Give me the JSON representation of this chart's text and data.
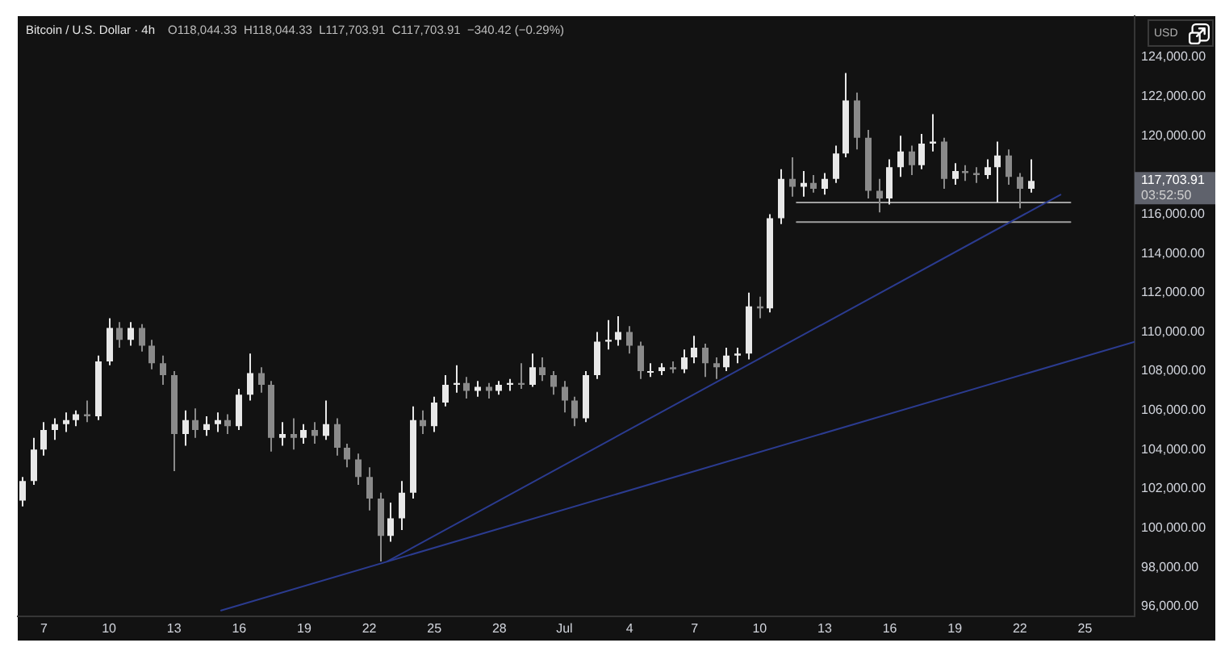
{
  "chart_data": {
    "type": "candlestick",
    "title": "Bitcoin / U.S. Dollar · 4h",
    "subtitle": "O118,044.33  H118,044.33  L117,703.91  C117,703.91  −340.42 (−0.29%)",
    "ylabel": "USD",
    "annotations": [
      "117,703.91",
      "03:52:50"
    ],
    "x": [
      "--06-06T00:00",
      "--06-06T12:00",
      "--06-07T00:00",
      "--06-07T12:00",
      "--06-08T00:00",
      "--06-08T12:00",
      "--06-09T00:00",
      "--06-09T12:00",
      "--06-10T00:00",
      "--06-10T12:00",
      "--06-11T00:00",
      "--06-11T12:00",
      "--06-12T00:00",
      "--06-12T12:00",
      "--06-13T00:00",
      "--06-13T12:00",
      "--06-14T00:00",
      "--06-14T12:00",
      "--06-15T00:00",
      "--06-15T12:00",
      "--06-16T00:00",
      "--06-16T12:00",
      "--06-17T00:00",
      "--06-17T12:00",
      "--06-18T00:00",
      "--06-18T12:00",
      "--06-19T00:00",
      "--06-19T12:00",
      "--06-20T00:00",
      "--06-20T12:00",
      "--06-21T00:00",
      "--06-21T12:00",
      "--06-22T00:00",
      "--06-22T12:00",
      "--06-23T00:00",
      "--06-23T12:00",
      "--06-24T00:00",
      "--06-24T12:00",
      "--06-25T00:00",
      "--06-25T12:00",
      "--06-26T00:00",
      "--06-26T12:00",
      "--06-27T00:00",
      "--06-27T12:00",
      "--06-28T00:00",
      "--06-28T12:00",
      "--06-29T00:00",
      "--06-29T12:00",
      "--06-30T00:00",
      "--06-30T12:00",
      "--07-01T00:00",
      "--07-01T12:00",
      "--07-02T00:00",
      "--07-02T12:00",
      "--07-03T00:00",
      "--07-03T12:00",
      "--07-04T00:00",
      "--07-04T12:00",
      "--07-05T00:00",
      "--07-05T12:00",
      "--07-06T00:00",
      "--07-06T12:00",
      "--07-07T00:00",
      "--07-07T12:00",
      "--07-08T00:00",
      "--07-08T12:00",
      "--07-09T00:00",
      "--07-09T12:00",
      "--07-10T00:00",
      "--07-10T12:00",
      "--07-11T00:00",
      "--07-11T12:00",
      "--07-12T00:00",
      "--07-12T12:00",
      "--07-13T00:00",
      "--07-13T12:00",
      "--07-14T00:00",
      "--07-14T12:00",
      "--07-15T00:00",
      "--07-15T12:00",
      "--07-16T00:00",
      "--07-16T12:00",
      "--07-17T00:00",
      "--07-17T12:00",
      "--07-18T00:00",
      "--07-18T12:00",
      "--07-19T00:00",
      "--07-19T12:00",
      "--07-20T00:00",
      "--07-20T12:00",
      "--07-21T00:00",
      "--07-21T12:00",
      "--07-22T00:00",
      "--07-22T12:00"
    ],
    "ohlc": [
      [
        101400,
        102600,
        101100,
        102400
      ],
      [
        102400,
        104600,
        102200,
        104000
      ],
      [
        104000,
        105400,
        103700,
        105000
      ],
      [
        105000,
        105600,
        104500,
        105300
      ],
      [
        105300,
        105900,
        104900,
        105500
      ],
      [
        105500,
        106000,
        105200,
        105800
      ],
      [
        105800,
        106500,
        105400,
        105700
      ],
      [
        105700,
        108800,
        105500,
        108500
      ],
      [
        108500,
        110700,
        108300,
        110200
      ],
      [
        110200,
        110500,
        109200,
        109600
      ],
      [
        109600,
        110500,
        109300,
        110200
      ],
      [
        110200,
        110400,
        109000,
        109300
      ],
      [
        109300,
        109600,
        108100,
        108400
      ],
      [
        108400,
        108800,
        107300,
        107800
      ],
      [
        107800,
        108000,
        102900,
        104800
      ],
      [
        104800,
        106000,
        104200,
        105500
      ],
      [
        105500,
        106100,
        104600,
        105000
      ],
      [
        105000,
        105700,
        104700,
        105300
      ],
      [
        105300,
        105900,
        104900,
        105500
      ],
      [
        105500,
        105800,
        104800,
        105200
      ],
      [
        105200,
        107100,
        105000,
        106800
      ],
      [
        106800,
        108900,
        106500,
        107900
      ],
      [
        107900,
        108200,
        106900,
        107300
      ],
      [
        107300,
        107500,
        103900,
        104600
      ],
      [
        104600,
        105400,
        104200,
        104800
      ],
      [
        104800,
        105600,
        104000,
        104600
      ],
      [
        104600,
        105300,
        104300,
        105000
      ],
      [
        105000,
        105400,
        104300,
        104700
      ],
      [
        104700,
        106500,
        104500,
        105300
      ],
      [
        105300,
        105600,
        103700,
        104100
      ],
      [
        104100,
        104300,
        103100,
        103500
      ],
      [
        103500,
        103800,
        102200,
        102600
      ],
      [
        102600,
        103100,
        100900,
        101500
      ],
      [
        101500,
        101800,
        98300,
        99600
      ],
      [
        99600,
        101300,
        99300,
        100500
      ],
      [
        100500,
        102400,
        99900,
        101800
      ],
      [
        101800,
        106200,
        101500,
        105500
      ],
      [
        105500,
        106000,
        104800,
        105200
      ],
      [
        105200,
        106700,
        104900,
        106400
      ],
      [
        106400,
        107800,
        106200,
        107300
      ],
      [
        107300,
        108300,
        106900,
        107400
      ],
      [
        107400,
        107700,
        106600,
        107000
      ],
      [
        107000,
        107500,
        106700,
        107200
      ],
      [
        107200,
        107400,
        106600,
        107000
      ],
      [
        107000,
        107500,
        106800,
        107300
      ],
      [
        107300,
        107600,
        107000,
        107400
      ],
      [
        107400,
        108400,
        107100,
        107300
      ],
      [
        107300,
        108900,
        107200,
        108200
      ],
      [
        108200,
        108700,
        107500,
        107800
      ],
      [
        107800,
        108000,
        106800,
        107200
      ],
      [
        107200,
        107500,
        105900,
        106500
      ],
      [
        106500,
        106700,
        105200,
        105600
      ],
      [
        105600,
        108000,
        105400,
        107800
      ],
      [
        107800,
        110000,
        107600,
        109500
      ],
      [
        109500,
        110600,
        109100,
        109600
      ],
      [
        109600,
        110800,
        109300,
        110000
      ],
      [
        110000,
        110300,
        108900,
        109300
      ],
      [
        109300,
        109500,
        107600,
        108000
      ],
      [
        108000,
        108400,
        107700,
        108000
      ],
      [
        108000,
        108400,
        107800,
        108200
      ],
      [
        108200,
        108500,
        107900,
        108100
      ],
      [
        108100,
        109100,
        107900,
        108700
      ],
      [
        108700,
        109800,
        108400,
        109200
      ],
      [
        109200,
        109400,
        107700,
        108400
      ],
      [
        108400,
        108700,
        107600,
        108200
      ],
      [
        108200,
        109200,
        108000,
        108800
      ],
      [
        108800,
        109200,
        108400,
        108900
      ],
      [
        108900,
        112000,
        108600,
        111300
      ],
      [
        111300,
        111800,
        110700,
        111200
      ],
      [
        111200,
        116000,
        111000,
        115800
      ],
      [
        115800,
        118300,
        115500,
        117800
      ],
      [
        117800,
        118900,
        116900,
        117400
      ],
      [
        117400,
        118200,
        116900,
        117600
      ],
      [
        117600,
        118000,
        117100,
        117300
      ],
      [
        117300,
        118100,
        117000,
        117800
      ],
      [
        117800,
        119500,
        117600,
        119100
      ],
      [
        119100,
        123200,
        118900,
        121800
      ],
      [
        121800,
        122200,
        119300,
        119900
      ],
      [
        119900,
        120300,
        116800,
        117200
      ],
      [
        117200,
        117800,
        116100,
        116800
      ],
      [
        116800,
        118800,
        116500,
        118400
      ],
      [
        118400,
        120000,
        117900,
        119200
      ],
      [
        119200,
        119500,
        118000,
        118500
      ],
      [
        118500,
        120100,
        118300,
        119600
      ],
      [
        119600,
        121100,
        119200,
        119700
      ],
      [
        119700,
        119900,
        117300,
        117800
      ],
      [
        117800,
        118600,
        117500,
        118200
      ],
      [
        118200,
        118500,
        117700,
        118100
      ],
      [
        118100,
        118400,
        117600,
        118000
      ],
      [
        118000,
        118800,
        117800,
        118400
      ],
      [
        118400,
        119700,
        116600,
        119000
      ],
      [
        119000,
        119300,
        117500,
        117900
      ],
      [
        117900,
        118100,
        116300,
        117300
      ],
      [
        117300,
        118800,
        117100,
        117703.91
      ]
    ],
    "colors": [
      "#e8e8e8",
      "#e8e8e8",
      "#e8e8e8",
      "#e8e8e8",
      "#e8e8e8",
      "#e8e8e8",
      "#8a8a8a",
      "#e8e8e8",
      "#e8e8e8",
      "#8a8a8a",
      "#e8e8e8",
      "#8a8a8a",
      "#8a8a8a",
      "#8a8a8a",
      "#8a8a8a",
      "#e8e8e8",
      "#8a8a8a",
      "#e8e8e8",
      "#e8e8e8",
      "#8a8a8a",
      "#e8e8e8",
      "#e8e8e8",
      "#8a8a8a",
      "#8a8a8a",
      "#e8e8e8",
      "#8a8a8a",
      "#e8e8e8",
      "#8a8a8a",
      "#e8e8e8",
      "#8a8a8a",
      "#8a8a8a",
      "#8a8a8a",
      "#8a8a8a",
      "#8a8a8a",
      "#e8e8e8",
      "#e8e8e8",
      "#e8e8e8",
      "#8a8a8a",
      "#e8e8e8",
      "#e8e8e8",
      "#e8e8e8",
      "#8a8a8a",
      "#e8e8e8",
      "#8a8a8a",
      "#e8e8e8",
      "#e8e8e8",
      "#8a8a8a",
      "#e8e8e8",
      "#8a8a8a",
      "#8a8a8a",
      "#8a8a8a",
      "#8a8a8a",
      "#e8e8e8",
      "#e8e8e8",
      "#e8e8e8",
      "#e8e8e8",
      "#8a8a8a",
      "#8a8a8a",
      "#e8e8e8",
      "#e8e8e8",
      "#8a8a8a",
      "#e8e8e8",
      "#e8e8e8",
      "#8a8a8a",
      "#8a8a8a",
      "#e8e8e8",
      "#e8e8e8",
      "#e8e8e8",
      "#8a8a8a",
      "#e8e8e8",
      "#e8e8e8",
      "#8a8a8a",
      "#e8e8e8",
      "#8a8a8a",
      "#e8e8e8",
      "#e8e8e8",
      "#e8e8e8",
      "#8a8a8a",
      "#8a8a8a",
      "#8a8a8a",
      "#e8e8e8",
      "#e8e8e8",
      "#8a8a8a",
      "#e8e8e8",
      "#e8e8e8",
      "#8a8a8a",
      "#e8e8e8",
      "#8a8a8a",
      "#8a8a8a",
      "#e8e8e8",
      "#e8e8e8",
      "#8a8a8a",
      "#8a8a8a",
      "#e8e8e8"
    ],
    "series": [
      {
        "type": "line",
        "x": [
          "--06-15T04:00",
          "--07-27T07:00"
        ],
        "values": [
          95800,
          109500
        ],
        "color": "#2b3b8f"
      },
      {
        "type": "line",
        "x": [
          "--06-22T20:00",
          "--07-23T21:00"
        ],
        "values": [
          98300,
          117000
        ],
        "color": "#2b3b8f"
      },
      {
        "type": "line",
        "x": [
          "--07-11T17:00",
          "--07-24T08:00"
        ],
        "values": [
          116600,
          116600
        ],
        "color": "#a0a0a0"
      },
      {
        "type": "line",
        "x": [
          "--07-11T17:00",
          "--07-24T08:00"
        ],
        "values": [
          115600,
          115600
        ],
        "color": "#a0a0a0"
      }
    ],
    "xlim": [
      "--06-05T19:00",
      "--07-27T07:00"
    ],
    "xticks": [
      {
        "value": "--06-07",
        "label": "7"
      },
      {
        "value": "--06-10",
        "label": "10"
      },
      {
        "value": "--06-13",
        "label": "13"
      },
      {
        "value": "--06-16",
        "label": "16"
      },
      {
        "value": "--06-19",
        "label": "19"
      },
      {
        "value": "--06-22",
        "label": "22"
      },
      {
        "value": "--06-25",
        "label": "25"
      },
      {
        "value": "--06-28",
        "label": "28"
      },
      {
        "value": "--07-01",
        "label": "Jul"
      },
      {
        "value": "--07-04",
        "label": "4"
      },
      {
        "value": "--07-07",
        "label": "7"
      },
      {
        "value": "--07-10",
        "label": "10"
      },
      {
        "value": "--07-13",
        "label": "13"
      },
      {
        "value": "--07-16",
        "label": "16"
      },
      {
        "value": "--07-19",
        "label": "19"
      },
      {
        "value": "--07-22",
        "label": "22"
      },
      {
        "value": "--07-25",
        "label": "25"
      }
    ],
    "ylim": [
      95500,
      126100
    ],
    "yticks": [
      {
        "value": 96000,
        "label": "96,000.00"
      },
      {
        "value": 98000,
        "label": "98,000.00"
      },
      {
        "value": 100000,
        "label": "100,000.00"
      },
      {
        "value": 102000,
        "label": "102,000.00"
      },
      {
        "value": 104000,
        "label": "104,000.00"
      },
      {
        "value": 106000,
        "label": "106,000.00"
      },
      {
        "value": 108000,
        "label": "108,000.00"
      },
      {
        "value": 110000,
        "label": "110,000.00"
      },
      {
        "value": 112000,
        "label": "112,000.00"
      },
      {
        "value": 114000,
        "label": "114,000.00"
      },
      {
        "value": 116000,
        "label": "116,000.00"
      },
      {
        "value": 120000,
        "label": "120,000.00"
      },
      {
        "value": 122000,
        "label": "122,000.00"
      },
      {
        "value": 124000,
        "label": "124,000.00"
      }
    ]
  }
}
